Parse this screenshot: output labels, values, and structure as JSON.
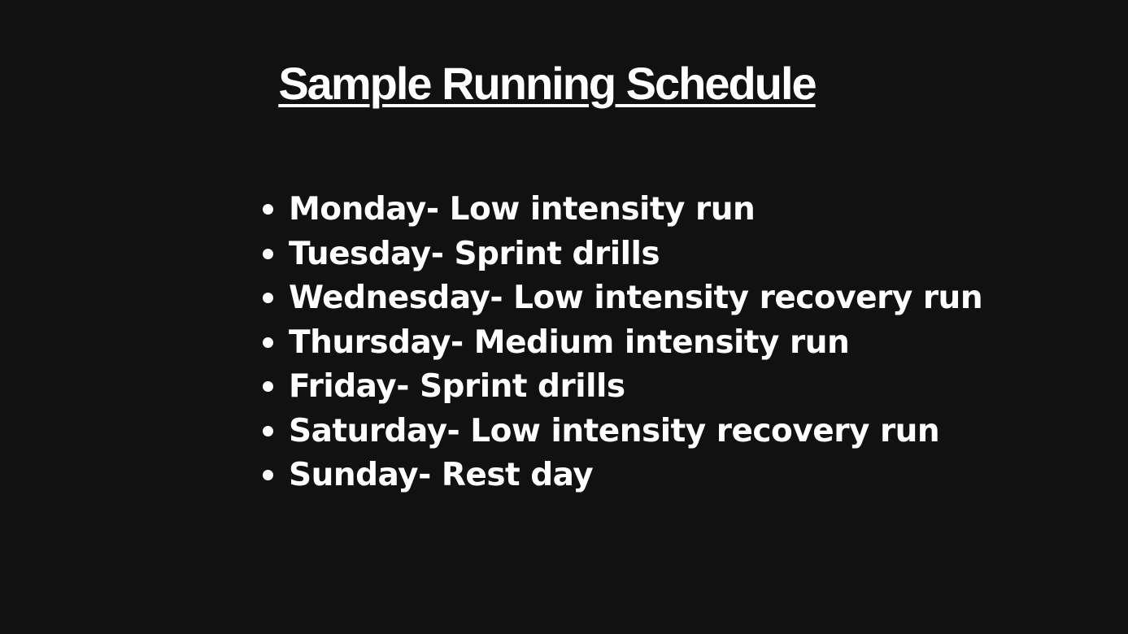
{
  "title": "Sample Running Schedule",
  "items": [
    "Monday- Low intensity run",
    "Tuesday- Sprint drills",
    "Wednesday- Low intensity recovery run",
    "Thursday- Medium intensity run",
    "Friday- Sprint drills",
    "Saturday- Low intensity recovery run",
    "Sunday- Rest day"
  ],
  "colors": {
    "background": "#111111",
    "text": "#ffffff"
  }
}
